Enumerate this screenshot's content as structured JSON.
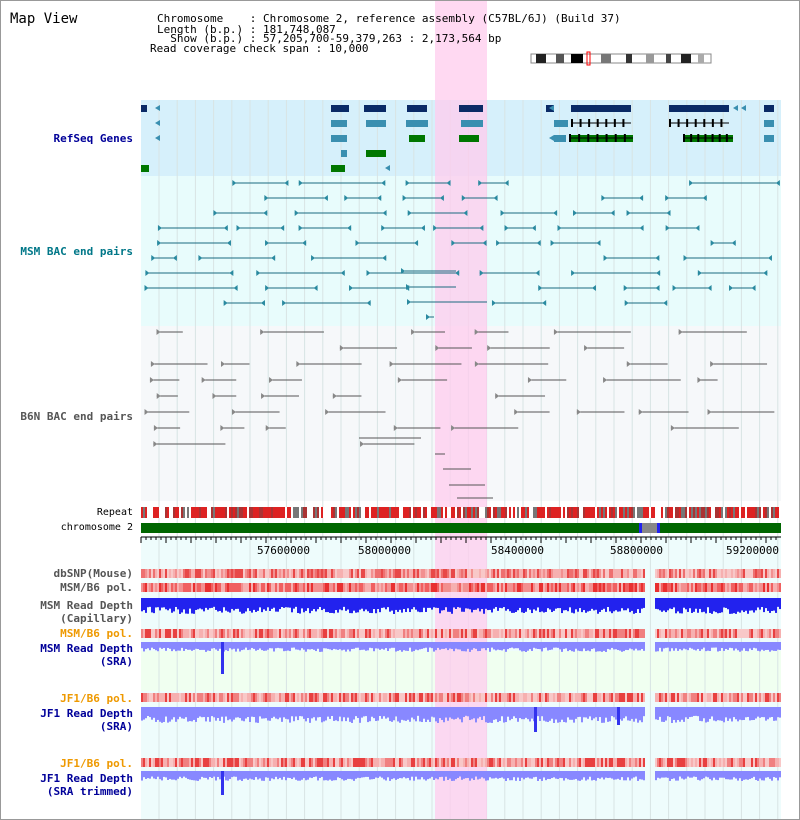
{
  "header": {
    "title": "Map View",
    "info_lines": [
      "Chromosome    : Chromosome 2, reference assembly (C57BL/6J) (Build 37)",
      "Length (b.p.) : 181,748,087",
      "  Show (b.p.) : 57,205,700-59,379,263 : 2,173,564 bp",
      "Read coverage check span : 10,000"
    ]
  },
  "tracks": {
    "refseq": {
      "label": "RefSeq Genes",
      "color": "#000099"
    },
    "msm_bac": {
      "label": "MSM BAC end pairs",
      "color": "#007788"
    },
    "b6n_bac": {
      "label": "B6N BAC end pairs",
      "color": "#555555"
    },
    "repeat": {
      "label": "Repeat"
    },
    "chromosome": {
      "label": "chromosome 2"
    },
    "dbsnp": {
      "label": "dbSNP(Mouse)"
    },
    "msm_b6_pol": {
      "label": "MSM/B6 pol."
    },
    "msm_depth_cap": {
      "label": "MSM Read Depth",
      "sub": "(Capillary)"
    },
    "msm_b6_pol2": {
      "label": "MSM/B6 pol."
    },
    "msm_depth_sra": {
      "label": "MSM Read Depth",
      "sub": "(SRA)"
    },
    "jf1_b6_pol": {
      "label": "JF1/B6 pol."
    },
    "jf1_depth_sra": {
      "label": "JF1 Read Depth",
      "sub": "(SRA)"
    },
    "jf1_b6_pol2": {
      "label": "JF1/B6 pol."
    },
    "jf1_depth_trim": {
      "label": "JF1 Read Depth",
      "sub": "(SRA trimmed)"
    }
  },
  "axis": {
    "ticks": [
      "57600000",
      "58000000",
      "58400000",
      "58800000",
      "59200000"
    ]
  },
  "colors": {
    "highlight": "#ffccee",
    "refseq_bg": "#d6f0fb",
    "bac_bg": "#e8fcfc",
    "b6n_bg": "#f6f8fa",
    "chromosome": "#006600",
    "gene_navy": "#0a2a66",
    "gene_teal": "#3a8fb0",
    "gene_green": "#007700",
    "depth_blue": "#2222ee",
    "depth_light": "#8888ff",
    "pol_red": "#ee3333",
    "pol_pink": "#f4a0a0"
  }
}
